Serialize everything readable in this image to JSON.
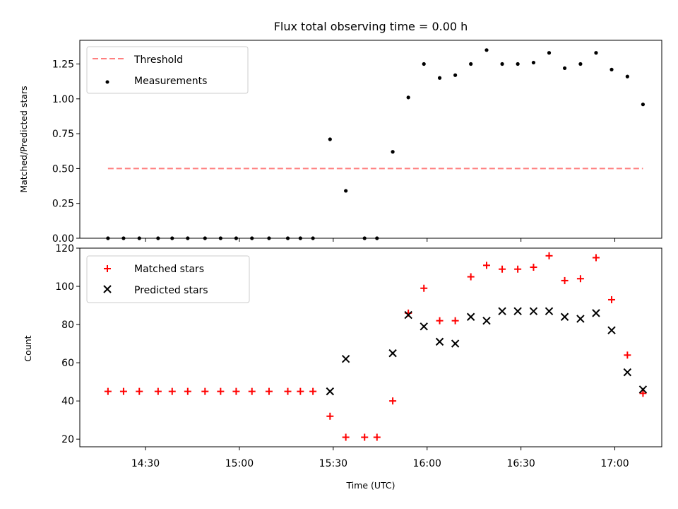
{
  "chart_data": [
    {
      "type": "scatter",
      "title": "Flux total observing time = 0.00 h",
      "xlabel": "",
      "ylabel": "Matched/Predicted stars",
      "xlim": [
        14.15,
        17.25
      ],
      "ylim": [
        0,
        1.42
      ],
      "yticks": [
        0.0,
        0.25,
        0.5,
        0.75,
        1.0,
        1.25
      ],
      "ytick_labels": [
        "0.00",
        "0.25",
        "0.50",
        "0.75",
        "1.00",
        "1.25"
      ],
      "xticks": [
        14.5,
        15.0,
        15.5,
        16.0,
        16.5,
        17.0
      ],
      "legend": {
        "position": "top-left",
        "entries": [
          "Threshold",
          "Measurements"
        ]
      },
      "series": [
        {
          "name": "Threshold",
          "style": "dashed-line",
          "color": "#ff7f7f",
          "x": [
            14.3,
            17.15
          ],
          "y": [
            0.5,
            0.5
          ]
        },
        {
          "name": "Measurements",
          "style": "dot",
          "color": "#000000",
          "x": [
            14.3,
            14.383,
            14.467,
            14.567,
            14.642,
            14.725,
            14.817,
            14.9,
            14.983,
            15.067,
            15.158,
            15.258,
            15.325,
            15.392,
            15.483,
            15.567,
            15.667,
            15.733,
            15.817,
            15.9,
            15.983,
            16.067,
            16.15,
            16.233,
            16.317,
            16.4,
            16.483,
            16.567,
            16.65,
            16.733,
            16.817,
            16.9,
            16.983,
            17.067,
            17.15
          ],
          "y": [
            0,
            0,
            0,
            0,
            0,
            0,
            0,
            0,
            0,
            0,
            0,
            0,
            0,
            0,
            0.71,
            0.34,
            0,
            0,
            0.62,
            1.01,
            1.25,
            1.15,
            1.17,
            1.25,
            1.35,
            1.25,
            1.25,
            1.26,
            1.33,
            1.22,
            1.25,
            1.33,
            1.21,
            1.16,
            0.96
          ]
        }
      ]
    },
    {
      "type": "scatter",
      "title": "",
      "xlabel": "Time (UTC)",
      "ylabel": "Count",
      "xlim": [
        14.15,
        17.25
      ],
      "ylim": [
        16,
        120
      ],
      "yticks": [
        20,
        40,
        60,
        80,
        100,
        120
      ],
      "ytick_labels": [
        "20",
        "40",
        "60",
        "80",
        "100",
        "120"
      ],
      "xticks": [
        14.5,
        15.0,
        15.5,
        16.0,
        16.5,
        17.0
      ],
      "xtick_labels": [
        "14:30",
        "15:00",
        "15:30",
        "16:00",
        "16:30",
        "17:00"
      ],
      "legend": {
        "position": "top-left",
        "entries": [
          "Matched stars",
          "Predicted stars"
        ]
      },
      "series": [
        {
          "name": "Matched stars",
          "marker": "plus",
          "color": "#ff0000",
          "x": [
            14.3,
            14.383,
            14.467,
            14.567,
            14.642,
            14.725,
            14.817,
            14.9,
            14.983,
            15.067,
            15.158,
            15.258,
            15.325,
            15.392,
            15.483,
            15.567,
            15.667,
            15.733,
            15.817,
            15.9,
            15.983,
            16.067,
            16.15,
            16.233,
            16.317,
            16.4,
            16.483,
            16.567,
            16.65,
            16.733,
            16.817,
            16.9,
            16.983,
            17.067,
            17.15
          ],
          "y": [
            45,
            45,
            45,
            45,
            45,
            45,
            45,
            45,
            45,
            45,
            45,
            45,
            45,
            45,
            32,
            21,
            21,
            21,
            40,
            86,
            99,
            82,
            82,
            105,
            111,
            109,
            109,
            110,
            116,
            103,
            104,
            115,
            93,
            64,
            44
          ]
        },
        {
          "name": "Predicted stars",
          "marker": "x",
          "color": "#000000",
          "x": [
            15.483,
            15.567,
            15.817,
            15.9,
            15.983,
            16.067,
            16.15,
            16.233,
            16.317,
            16.4,
            16.483,
            16.567,
            16.65,
            16.733,
            16.817,
            16.9,
            16.983,
            17.067,
            17.15
          ],
          "y": [
            45,
            62,
            65,
            85,
            79,
            71,
            70,
            84,
            82,
            87,
            87,
            87,
            87,
            84,
            83,
            86,
            77,
            55,
            46
          ]
        }
      ]
    }
  ]
}
